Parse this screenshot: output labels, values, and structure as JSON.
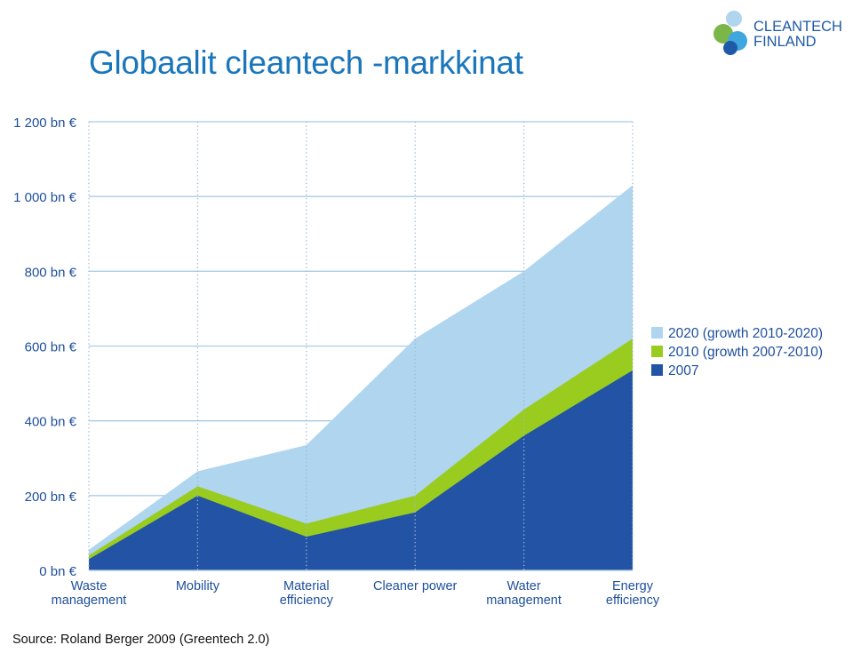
{
  "page": {
    "title": "Globaalit cleantech -markkinat",
    "source": "Source: Roland Berger 2009 (Greentech 2.0)"
  },
  "logo": {
    "icon": "cleantech-finland-logo",
    "line1": "CLEANTECH",
    "line2": "FINLAND",
    "colors": [
      "#7ab648",
      "#3fa7dd",
      "#1e5aa8"
    ]
  },
  "chart_data": {
    "type": "area",
    "title": "",
    "xlabel": "",
    "ylabel": "",
    "stacked": true,
    "ylim": [
      0,
      1200
    ],
    "yticks": [
      {
        "value": 0,
        "label": "0 bn €"
      },
      {
        "value": 200,
        "label": "200 bn €"
      },
      {
        "value": 400,
        "label": "400 bn €"
      },
      {
        "value": 600,
        "label": "600 bn €"
      },
      {
        "value": 800,
        "label": "800 bn €"
      },
      {
        "value": 1000,
        "label": "1 000 bn €"
      },
      {
        "value": 1200,
        "label": "1 200 bn €"
      }
    ],
    "categories": [
      [
        "Waste",
        "management"
      ],
      [
        "Mobility"
      ],
      [
        "Material",
        "efficiency"
      ],
      [
        "Cleaner power"
      ],
      [
        "Water",
        "management"
      ],
      [
        "Energy",
        "efficiency"
      ]
    ],
    "series": [
      {
        "name": "2007",
        "color": "#2253a4",
        "totals": [
          30,
          200,
          90,
          155,
          360,
          535
        ]
      },
      {
        "name": "2010 (growth 2007-2010)",
        "color": "#99cc1f",
        "totals": [
          40,
          225,
          125,
          200,
          430,
          620
        ]
      },
      {
        "name": "2020 (growth 2010-2020)",
        "color": "#afd5ef",
        "totals": [
          55,
          265,
          335,
          620,
          800,
          1030
        ]
      }
    ],
    "grid": {
      "horizontal": true,
      "vertical": "dotted"
    },
    "legend": {
      "placement": "right",
      "items": [
        {
          "label": "2020 (growth 2010-2020)",
          "color": "#afd5ef"
        },
        {
          "label": "2010 (growth 2007-2010)",
          "color": "#99cc1f"
        },
        {
          "label": "2007",
          "color": "#2253a4"
        }
      ]
    }
  }
}
